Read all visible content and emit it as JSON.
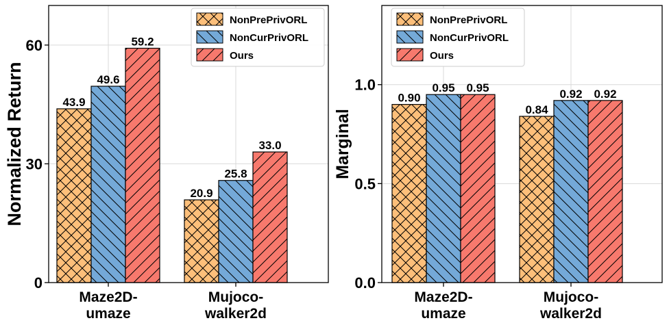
{
  "colors": {
    "NonPrePrivORL": "#fdbf7a",
    "NonCurPrivORL": "#74a9d8",
    "Ours": "#f7796d",
    "grid": "#d9d9d9",
    "edge": "#000000"
  },
  "chart_data": [
    {
      "type": "bar",
      "title": "",
      "xlabel": "",
      "ylabel": "Normalized Return",
      "categories": [
        [
          "Maze2D-",
          "umaze"
        ],
        [
          "Mujoco-",
          "walker2d"
        ]
      ],
      "series": [
        {
          "name": "NonPrePrivORL",
          "values": [
            43.9,
            20.9
          ],
          "labels": [
            "43.9",
            "20.9"
          ],
          "hatch": "cross",
          "color_key": "NonPrePrivORL"
        },
        {
          "name": "NonCurPrivORL",
          "values": [
            49.6,
            25.8
          ],
          "labels": [
            "49.6",
            "25.8"
          ],
          "hatch": "back",
          "color_key": "NonCurPrivORL"
        },
        {
          "name": "Ours",
          "values": [
            59.2,
            33.0
          ],
          "labels": [
            "59.2",
            "33.0"
          ],
          "hatch": "fwd",
          "color_key": "Ours"
        }
      ],
      "ylim": [
        0,
        70
      ],
      "yticks": [
        0,
        30,
        60
      ],
      "ytick_labels": [
        "0",
        "30",
        "60"
      ],
      "grid": true,
      "legend": "top-right"
    },
    {
      "type": "bar",
      "title": "",
      "xlabel": "",
      "ylabel": "Marginal",
      "categories": [
        [
          "Maze2D-",
          "umaze"
        ],
        [
          "Mujoco-",
          "walker2d"
        ]
      ],
      "series": [
        {
          "name": "NonPrePrivORL",
          "values": [
            0.9,
            0.84
          ],
          "labels": [
            "0.90",
            "0.84"
          ],
          "hatch": "cross",
          "color_key": "NonPrePrivORL"
        },
        {
          "name": "NonCurPrivORL",
          "values": [
            0.95,
            0.92
          ],
          "labels": [
            "0.95",
            "0.92"
          ],
          "hatch": "back",
          "color_key": "NonCurPrivORL"
        },
        {
          "name": "Ours",
          "values": [
            0.95,
            0.92
          ],
          "labels": [
            "0.95",
            "0.92"
          ],
          "hatch": "fwd",
          "color_key": "Ours"
        }
      ],
      "ylim": [
        0,
        1.4
      ],
      "yticks": [
        0,
        0.5,
        1.0
      ],
      "ytick_labels": [
        "0.0",
        "0.5",
        "1.0"
      ],
      "grid": true,
      "legend": "top-left"
    }
  ]
}
